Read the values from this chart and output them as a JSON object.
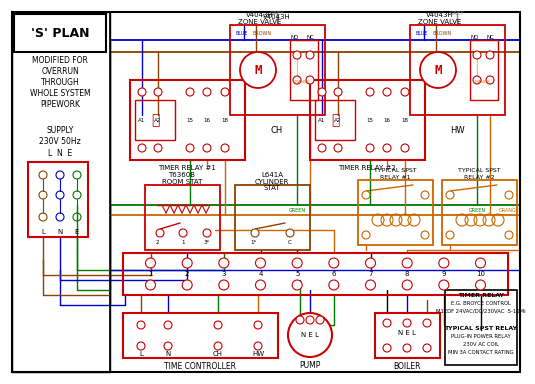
{
  "bg_color": "#ffffff",
  "red": "#cc0000",
  "blue": "#0000cc",
  "green": "#007700",
  "orange": "#cc6600",
  "brown": "#884400",
  "black": "#000000",
  "gray": "#888888",
  "pink": "#ffaaaa",
  "title": "'S' PLAN",
  "subtitle": [
    "MODIFIED FOR",
    "OVERRUN",
    "THROUGH",
    "WHOLE SYSTEM",
    "PIPEWORK"
  ],
  "supply1": "SUPPLY",
  "supply2": "230V 50Hz",
  "lne": "L  N  E",
  "tr1_label": "TIMER RELAY #1",
  "tr2_label": "TIMER RELAY #2",
  "zv1_label": "V4043H\nZONE VALVE",
  "zv2_label": "V4043H\nZONE VALVE",
  "rs_label": "T6360B\nROOM STAT",
  "cs_label": "L641A\nCYLINDER\nSTAT",
  "sp1_label": "TYPICAL SPST\nRELAY #1",
  "sp2_label": "TYPICAL SPST\nRELAY #2",
  "tc_label": "TIME CONTROLLER",
  "pump_label": "PUMP",
  "boiler_label": "BOILER",
  "info_lines": [
    "TIMER RELAY",
    "E.G. BROYCE CONTROL",
    "M1EDF 24VAC/DC/230VAC  5-10Mi",
    "",
    "TYPICAL SPST RELAY",
    "PLUG-IN POWER RELAY",
    "230V AC COIL",
    "MIN 3A CONTACT RATING"
  ]
}
